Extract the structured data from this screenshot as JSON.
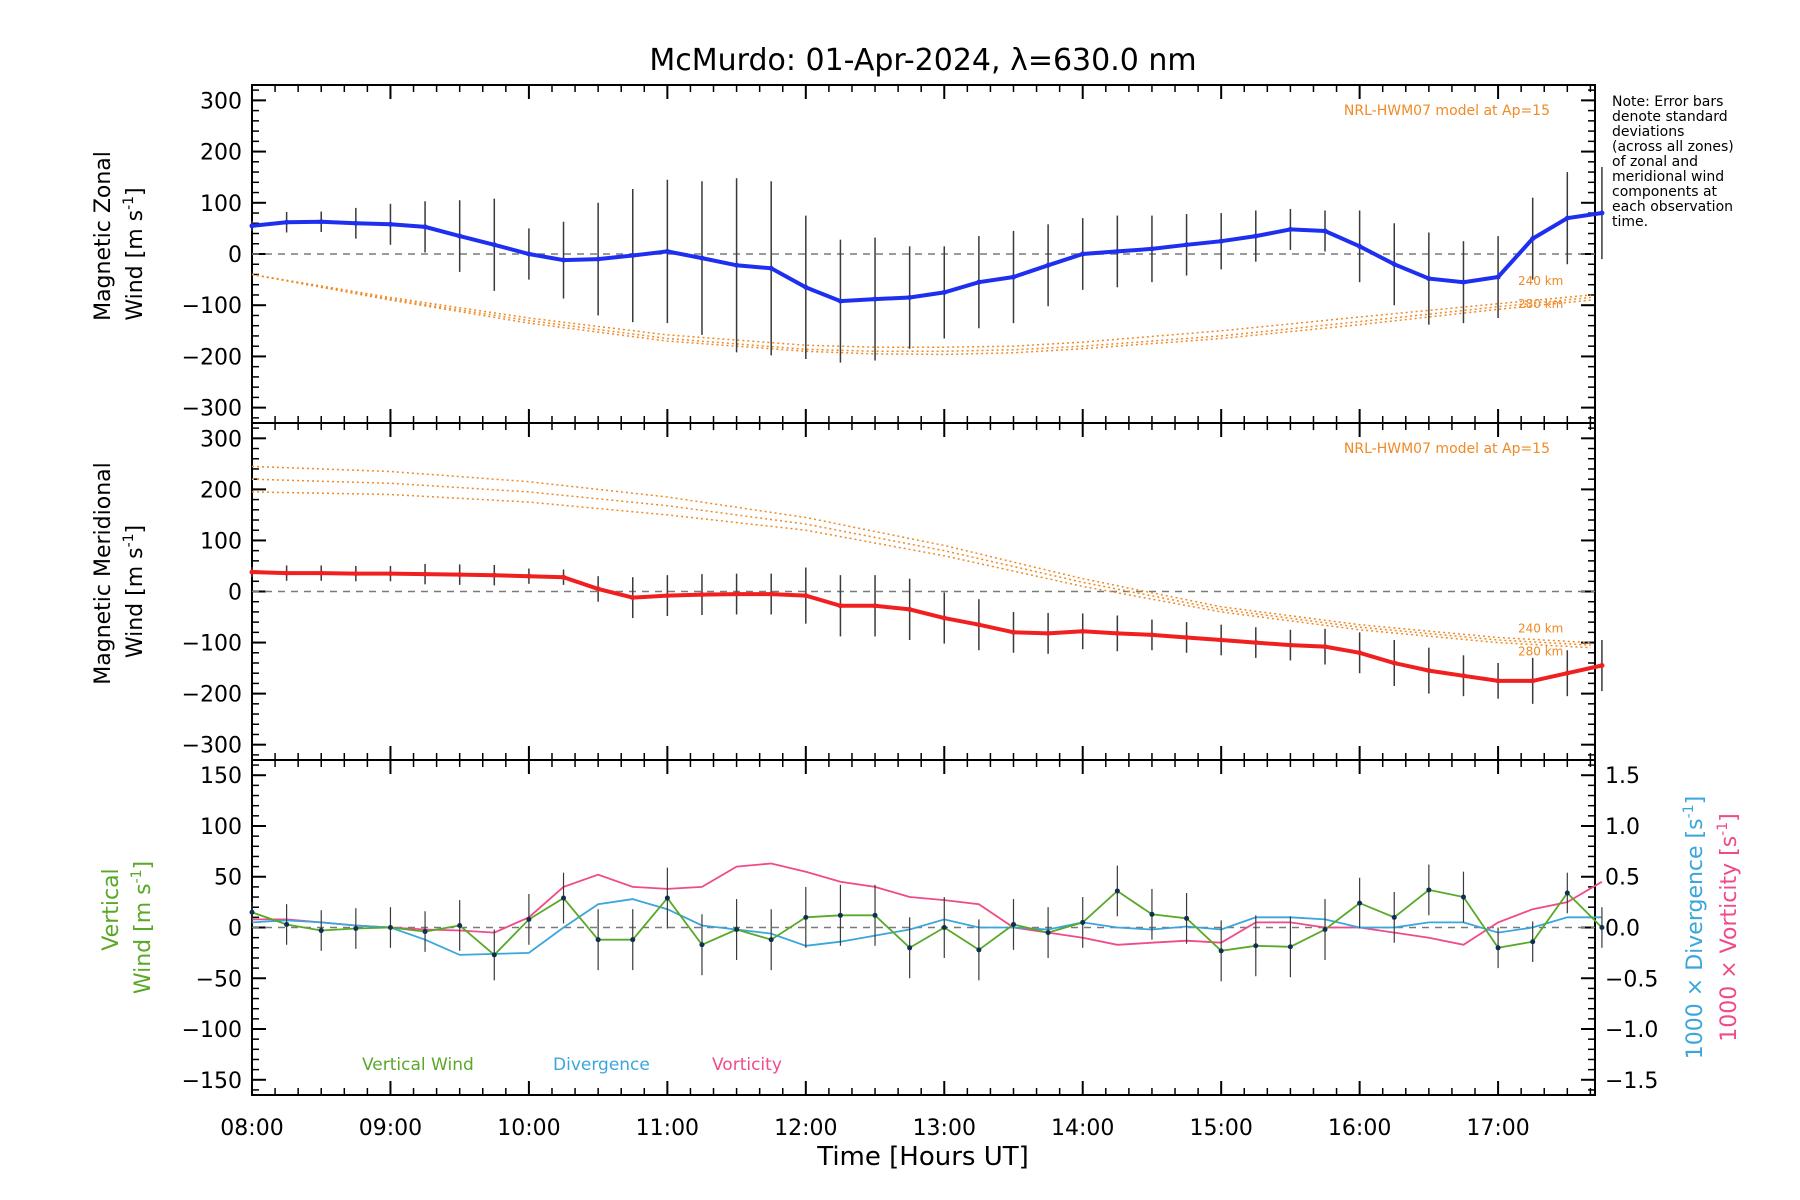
{
  "title": "McMurdo: 01-Apr-2024, λ=630.0 nm",
  "xlabel": "Time [Hours UT]",
  "x_ticks": [
    "08:00",
    "09:00",
    "10:00",
    "11:00",
    "12:00",
    "13:00",
    "14:00",
    "15:00",
    "16:00",
    "17:00"
  ],
  "note": [
    "Note: Error bars",
    "denote standard",
    "deviations",
    "(across all zones)",
    "of zonal and",
    "meridional wind",
    "components at",
    "each observation",
    "time."
  ],
  "colors": {
    "zonal": "#1f2ff0",
    "meridional": "#f02020",
    "model": "#f08a24",
    "vertical": "#5aa828",
    "divergence": "#3aa6dc",
    "vorticity": "#f04a8a",
    "zero_line": "#7a7a7a",
    "error_bar": "#3a3a3a"
  },
  "chart_data": [
    {
      "type": "line",
      "panel": "zonal",
      "ylabel_line1": "Magnetic Zonal",
      "ylabel_line2": "Wind [m s",
      "ylabel_sup": "-1",
      "ylabel_end": "]",
      "ylim": [
        -330,
        330
      ],
      "yticks": [
        300,
        200,
        100,
        0,
        -100,
        -200,
        -300
      ],
      "model_label": "NRL-HWM07 model at Ap=15",
      "model_alt_labels": [
        "240 km",
        "280 km"
      ],
      "x": [
        8.0,
        8.25,
        8.5,
        8.75,
        9.0,
        9.25,
        9.5,
        9.75,
        10.0,
        10.25,
        10.5,
        10.75,
        11.0,
        11.25,
        11.5,
        11.75,
        12.0,
        12.25,
        12.5,
        12.75,
        13.0,
        13.25,
        13.5,
        13.75,
        14.0,
        14.25,
        14.5,
        14.75,
        15.0,
        15.25,
        15.5,
        15.75,
        16.0,
        16.25,
        16.5,
        16.75,
        17.0,
        17.25,
        17.5,
        17.75
      ],
      "series": [
        {
          "values": [
            55,
            62,
            63,
            60,
            58,
            53,
            35,
            18,
            0,
            -12,
            -10,
            -3,
            5,
            -8,
            -22,
            -28,
            -65,
            -92,
            -88,
            -85,
            -75,
            -55,
            -45,
            -22,
            0,
            5,
            10,
            18,
            25,
            35,
            48,
            45,
            15,
            -20,
            -48,
            -55,
            -45,
            30,
            70,
            80
          ],
          "errors": [
            10,
            20,
            20,
            30,
            40,
            50,
            70,
            90,
            50,
            75,
            110,
            130,
            140,
            150,
            170,
            170,
            140,
            120,
            120,
            100,
            90,
            90,
            90,
            80,
            70,
            70,
            65,
            60,
            55,
            50,
            40,
            40,
            70,
            80,
            90,
            80,
            80,
            80,
            90,
            90
          ]
        }
      ],
      "model_curves": [
        {
          "x": [
            8.0,
            9.0,
            10.0,
            11.0,
            12.0,
            12.5,
            13.0,
            13.5,
            14.0,
            15.0,
            16.0,
            17.0,
            17.67
          ],
          "values": [
            -40,
            -85,
            -125,
            -158,
            -178,
            -182,
            -182,
            -180,
            -172,
            -150,
            -123,
            -97,
            -80
          ]
        },
        {
          "x": [
            8.0,
            9.0,
            10.0,
            11.0,
            12.0,
            12.5,
            13.0,
            13.5,
            14.0,
            15.0,
            16.0,
            17.0,
            17.67
          ],
          "values": [
            -40,
            -88,
            -130,
            -165,
            -186,
            -190,
            -190,
            -187,
            -180,
            -160,
            -132,
            -103,
            -85
          ]
        },
        {
          "x": [
            8.0,
            9.0,
            10.0,
            11.0,
            12.0,
            12.5,
            13.0,
            13.5,
            14.0,
            15.0,
            16.0,
            17.0,
            17.67
          ],
          "values": [
            -40,
            -90,
            -135,
            -170,
            -190,
            -195,
            -196,
            -193,
            -185,
            -165,
            -138,
            -108,
            -90
          ]
        }
      ]
    },
    {
      "type": "line",
      "panel": "meridional",
      "ylabel_line1": "Magnetic Meridional",
      "ylabel_line2": "Wind [m s",
      "ylabel_sup": "-1",
      "ylabel_end": "]",
      "ylim": [
        -330,
        330
      ],
      "yticks": [
        300,
        200,
        100,
        0,
        -100,
        -200,
        -300
      ],
      "model_label": "NRL-HWM07 model at Ap=15",
      "model_alt_labels": [
        "240 km",
        "280 km"
      ],
      "x": [
        8.0,
        8.25,
        8.5,
        8.75,
        9.0,
        9.25,
        9.5,
        9.75,
        10.0,
        10.25,
        10.5,
        10.75,
        11.0,
        11.25,
        11.5,
        11.75,
        12.0,
        12.25,
        12.5,
        12.75,
        13.0,
        13.25,
        13.5,
        13.75,
        14.0,
        14.25,
        14.5,
        14.75,
        15.0,
        15.25,
        15.5,
        15.75,
        16.0,
        16.25,
        16.5,
        16.75,
        17.0,
        17.25,
        17.5,
        17.75
      ],
      "series": [
        {
          "values": [
            38,
            36,
            36,
            35,
            35,
            34,
            33,
            32,
            30,
            28,
            5,
            -12,
            -8,
            -6,
            -5,
            -5,
            -8,
            -28,
            -28,
            -35,
            -52,
            -65,
            -80,
            -82,
            -78,
            -82,
            -85,
            -90,
            -95,
            -100,
            -105,
            -108,
            -120,
            -140,
            -155,
            -165,
            -175,
            -175,
            -160,
            -145
          ],
          "errors": [
            10,
            15,
            15,
            15,
            15,
            20,
            20,
            20,
            15,
            15,
            25,
            40,
            40,
            40,
            40,
            40,
            55,
            60,
            60,
            60,
            50,
            50,
            40,
            40,
            35,
            35,
            30,
            30,
            30,
            30,
            30,
            35,
            40,
            45,
            45,
            40,
            35,
            45,
            45,
            50
          ]
        }
      ],
      "model_curves": [
        {
          "x": [
            8.0,
            9.0,
            10.0,
            11.0,
            12.0,
            13.0,
            14.0,
            15.0,
            16.0,
            17.0,
            17.67
          ],
          "values": [
            245,
            235,
            215,
            185,
            145,
            90,
            25,
            -30,
            -65,
            -90,
            -100
          ]
        },
        {
          "x": [
            8.0,
            9.0,
            10.0,
            11.0,
            12.0,
            13.0,
            14.0,
            15.0,
            16.0,
            17.0,
            17.67
          ],
          "values": [
            220,
            212,
            195,
            168,
            132,
            80,
            18,
            -35,
            -70,
            -95,
            -105
          ]
        },
        {
          "x": [
            8.0,
            9.0,
            10.0,
            11.0,
            12.0,
            13.0,
            14.0,
            15.0,
            16.0,
            17.0,
            17.67
          ],
          "values": [
            195,
            190,
            175,
            150,
            120,
            70,
            10,
            -40,
            -75,
            -100,
            -110
          ]
        }
      ]
    },
    {
      "type": "line",
      "panel": "vertical",
      "ylabel_line1": "Vertical",
      "ylabel_line2": "Wind [m s",
      "ylabel_sup": "-1",
      "ylabel_end": "]",
      "ylim": [
        -165,
        165
      ],
      "yticks": [
        150,
        100,
        50,
        0,
        -50,
        -100,
        -150
      ],
      "y2label_div": "1000 × Divergence [s",
      "y2label_vort": "1000 × Vorticity [s",
      "y2label_sup": "-1",
      "y2label_end": "]",
      "y2lim": [
        -1.65,
        1.65
      ],
      "y2ticks": [
        "1.5",
        "1.0",
        "0.5",
        "0.0",
        "−0.5",
        "−1.0",
        "−1.5"
      ],
      "legend": [
        "Vertical Wind",
        "Divergence",
        "Vorticity"
      ],
      "x": [
        8.0,
        8.25,
        8.5,
        8.75,
        9.0,
        9.25,
        9.5,
        9.75,
        10.0,
        10.25,
        10.5,
        10.75,
        11.0,
        11.25,
        11.5,
        11.75,
        12.0,
        12.25,
        12.5,
        12.75,
        13.0,
        13.25,
        13.5,
        13.75,
        14.0,
        14.25,
        14.5,
        14.75,
        15.0,
        15.25,
        15.5,
        15.75,
        16.0,
        16.25,
        16.5,
        16.75,
        17.0,
        17.25,
        17.5,
        17.75
      ],
      "series": [
        {
          "name": "Vertical Wind",
          "values": [
            15,
            3,
            -3,
            -1,
            0,
            -4,
            2,
            -27,
            8,
            29,
            -12,
            -12,
            29,
            -17,
            -2,
            -12,
            10,
            12,
            12,
            -20,
            0,
            -22,
            3,
            -5,
            5,
            36,
            13,
            9,
            -23,
            -18,
            -19,
            -2,
            24,
            10,
            37,
            30,
            -20,
            -14,
            34,
            0
          ],
          "errors": [
            10,
            20,
            20,
            20,
            20,
            20,
            25,
            25,
            25,
            25,
            30,
            30,
            30,
            30,
            30,
            30,
            30,
            30,
            30,
            30,
            30,
            30,
            25,
            25,
            25,
            25,
            25,
            25,
            30,
            30,
            30,
            30,
            25,
            25,
            25,
            25,
            20,
            20,
            20,
            20
          ]
        },
        {
          "name": "Divergence",
          "values": [
            0.05,
            0.07,
            0.05,
            0.02,
            0.0,
            -0.12,
            -0.27,
            -0.26,
            -0.25,
            0.0,
            0.23,
            0.28,
            0.18,
            0.02,
            -0.02,
            -0.06,
            -0.18,
            -0.14,
            -0.08,
            -0.02,
            0.08,
            0.0,
            0.0,
            -0.02,
            0.05,
            0.0,
            -0.02,
            0.01,
            -0.02,
            0.1,
            0.1,
            0.08,
            0.0,
            0.0,
            0.05,
            0.05,
            -0.05,
            0.0,
            0.1,
            0.1
          ]
        },
        {
          "name": "Vorticity",
          "values": [
            0.08,
            0.08,
            0.05,
            0.02,
            0.0,
            -0.02,
            -0.03,
            -0.05,
            0.1,
            0.4,
            0.52,
            0.4,
            0.38,
            0.4,
            0.6,
            0.63,
            0.55,
            0.45,
            0.4,
            0.3,
            0.27,
            0.23,
            0.0,
            -0.05,
            -0.1,
            -0.17,
            -0.15,
            -0.13,
            -0.15,
            0.05,
            0.05,
            0.0,
            0.0,
            -0.05,
            -0.1,
            -0.17,
            0.05,
            0.18,
            0.25,
            0.45
          ]
        }
      ]
    }
  ]
}
